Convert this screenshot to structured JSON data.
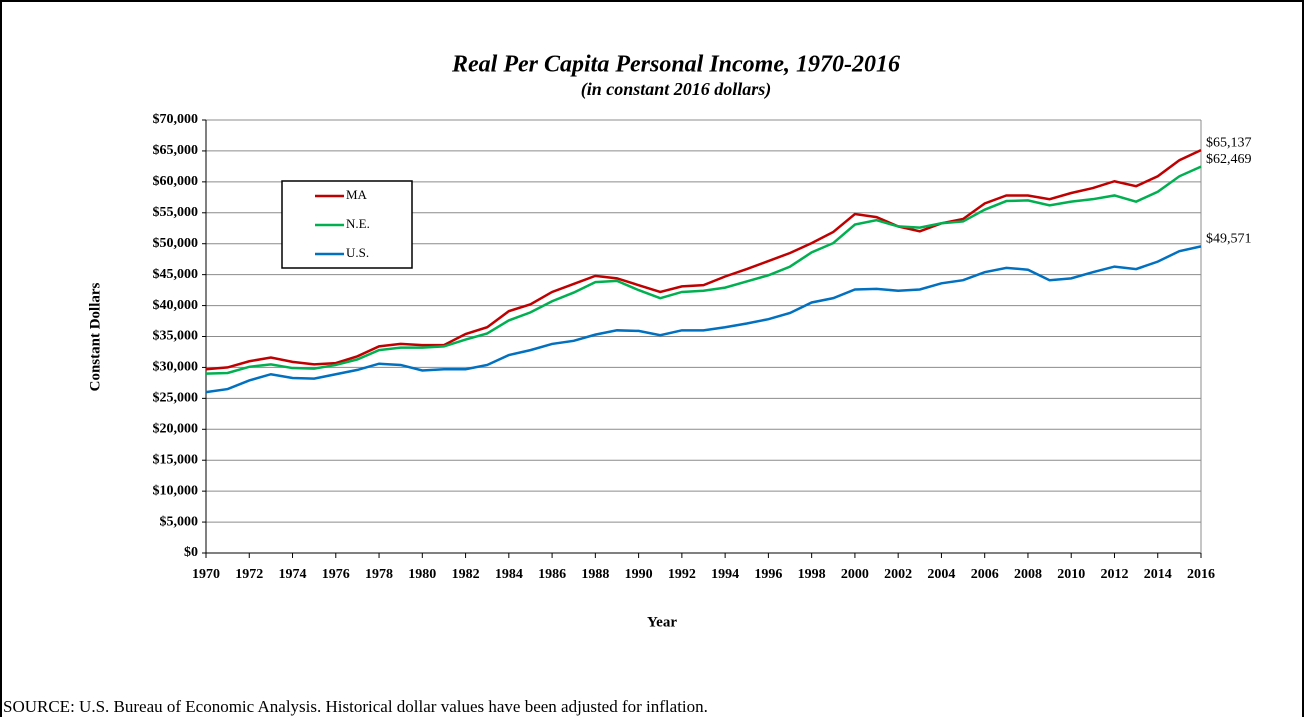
{
  "chart_data": {
    "type": "line",
    "title": "Real Per Capita Personal Income, 1970-2016",
    "subtitle": "(in constant 2016 dollars)",
    "x_label": "Year",
    "y_label": "Constant Dollars",
    "source": "SOURCE:  U.S. Bureau of Economic Analysis. Historical dollar values have been adjusted for inflation.",
    "x": [
      1970,
      1971,
      1972,
      1973,
      1974,
      1975,
      1976,
      1977,
      1978,
      1979,
      1980,
      1981,
      1982,
      1983,
      1984,
      1985,
      1986,
      1987,
      1988,
      1989,
      1990,
      1991,
      1992,
      1993,
      1994,
      1995,
      1996,
      1997,
      1998,
      1999,
      2000,
      2001,
      2002,
      2003,
      2004,
      2005,
      2006,
      2007,
      2008,
      2009,
      2010,
      2011,
      2012,
      2013,
      2014,
      2015,
      2016
    ],
    "xlim": [
      1970,
      2016
    ],
    "xticks": [
      1970,
      1972,
      1974,
      1976,
      1978,
      1980,
      1982,
      1984,
      1986,
      1988,
      1990,
      1992,
      1994,
      1996,
      1998,
      2000,
      2002,
      2004,
      2006,
      2008,
      2010,
      2012,
      2014,
      2016
    ],
    "ylim": [
      0,
      70000
    ],
    "yticks": [
      {
        "value": 0,
        "label": "$0"
      },
      {
        "value": 5000,
        "label": "$5,000"
      },
      {
        "value": 10000,
        "label": "$10,000"
      },
      {
        "value": 15000,
        "label": "$15,000"
      },
      {
        "value": 20000,
        "label": "$20,000"
      },
      {
        "value": 25000,
        "label": "$25,000"
      },
      {
        "value": 30000,
        "label": "$30,000"
      },
      {
        "value": 35000,
        "label": "$35,000"
      },
      {
        "value": 40000,
        "label": "$40,000"
      },
      {
        "value": 45000,
        "label": "$45,000"
      },
      {
        "value": 50000,
        "label": "$50,000"
      },
      {
        "value": 55000,
        "label": "$55,000"
      },
      {
        "value": 60000,
        "label": "$60,000"
      },
      {
        "value": 65000,
        "label": "$65,000"
      },
      {
        "value": 70000,
        "label": "$70,000"
      }
    ],
    "grid": true,
    "legend": "upper left",
    "series": [
      {
        "name": "MA",
        "color": "#c00000",
        "values": [
          29700,
          30000,
          31000,
          31600,
          30900,
          30500,
          30700,
          31800,
          33400,
          33800,
          33600,
          33600,
          35400,
          36500,
          39100,
          40200,
          42200,
          43500,
          44800,
          44400,
          43300,
          42200,
          43100,
          43300,
          44700,
          45900,
          47200,
          48500,
          50100,
          51900,
          54800,
          54300,
          52800,
          52000,
          53300,
          54000,
          56500,
          57800,
          57800,
          57200,
          58200,
          59000,
          60100,
          59300,
          60900,
          63500,
          65137
        ],
        "value_labels": [
          null,
          null,
          null,
          null,
          null,
          null,
          null,
          null,
          null,
          null,
          null,
          null,
          null,
          null,
          null,
          null,
          null,
          null,
          null,
          null,
          null,
          null,
          null,
          null,
          null,
          null,
          null,
          null,
          null,
          null,
          null,
          null,
          null,
          null,
          null,
          null,
          null,
          null,
          null,
          null,
          null,
          null,
          null,
          null,
          null,
          null,
          "$65,137"
        ]
      },
      {
        "name": "N.E.",
        "color": "#00b050",
        "values": [
          29000,
          29100,
          30100,
          30500,
          29900,
          29800,
          30400,
          31300,
          32800,
          33200,
          33200,
          33400,
          34500,
          35500,
          37600,
          38900,
          40700,
          42100,
          43800,
          44000,
          42500,
          41200,
          42200,
          42400,
          42900,
          43900,
          44900,
          46300,
          48600,
          50100,
          53100,
          53800,
          52800,
          52600,
          53300,
          53600,
          55500,
          56900,
          57000,
          56200,
          56800,
          57200,
          57800,
          56800,
          58400,
          60900,
          62469
        ],
        "value_labels": [
          null,
          null,
          null,
          null,
          null,
          null,
          null,
          null,
          null,
          null,
          null,
          null,
          null,
          null,
          null,
          null,
          null,
          null,
          null,
          null,
          null,
          null,
          null,
          null,
          null,
          null,
          null,
          null,
          null,
          null,
          null,
          null,
          null,
          null,
          null,
          null,
          null,
          null,
          null,
          null,
          null,
          null,
          null,
          null,
          null,
          null,
          "$62,469"
        ]
      },
      {
        "name": "U.S.",
        "color": "#0070c0",
        "values": [
          26000,
          26500,
          27900,
          28900,
          28300,
          28200,
          28900,
          29600,
          30600,
          30400,
          29500,
          29700,
          29700,
          30400,
          32000,
          32800,
          33800,
          34300,
          35300,
          36000,
          35900,
          35200,
          36000,
          36000,
          36500,
          37100,
          37800,
          38800,
          40500,
          41200,
          42600,
          42700,
          42400,
          42600,
          43600,
          44100,
          45400,
          46100,
          45800,
          44100,
          44400,
          45400,
          46300,
          45900,
          47100,
          48800,
          49571
        ],
        "value_labels": [
          null,
          null,
          null,
          null,
          null,
          null,
          null,
          null,
          null,
          null,
          null,
          null,
          null,
          null,
          null,
          null,
          null,
          null,
          null,
          null,
          null,
          null,
          null,
          null,
          null,
          null,
          null,
          null,
          null,
          null,
          null,
          null,
          null,
          null,
          null,
          null,
          null,
          null,
          null,
          null,
          null,
          null,
          null,
          null,
          null,
          null,
          "$49,571"
        ]
      }
    ]
  }
}
